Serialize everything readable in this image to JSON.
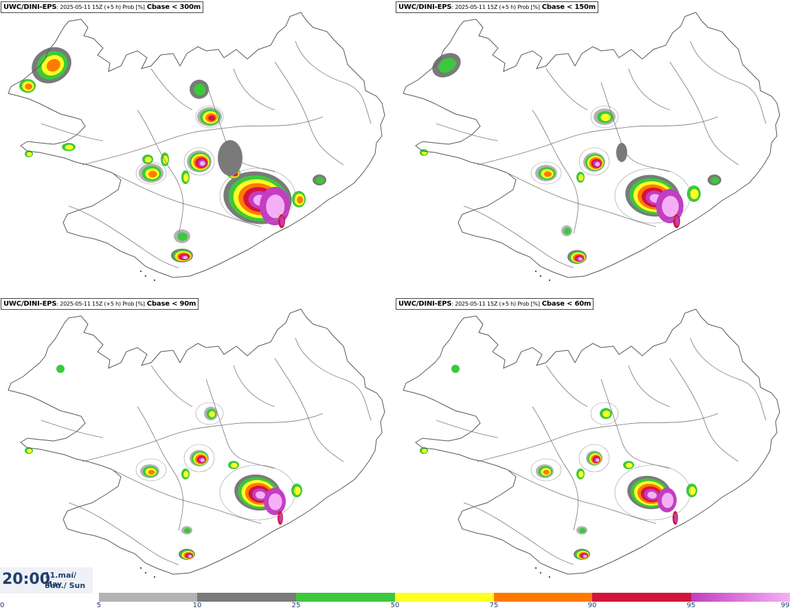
{
  "panels": [
    {
      "model": "UWC/DINI-EPS",
      "info": ": 2025-05-11 15Z (+5 h) Prob [%]",
      "field": "Cbase < 300m",
      "level": 3
    },
    {
      "model": "UWC/DINI-EPS",
      "info": ": 2025-05-11 15Z (+5 h) Prob [%]",
      "field": "Cbase < 150m",
      "level": 2
    },
    {
      "model": "UWC/DINI-EPS",
      "info": ": 2025-05-11 15Z (+5 h) Prob [%]",
      "field": "Cbase < 90m",
      "level": 1
    },
    {
      "model": "UWC/DINI-EPS",
      "info": ": 2025-05-11 15Z (+5 h) Prob [%]",
      "field": "Cbase < 60m",
      "level": 0
    }
  ],
  "time": {
    "clock": "20:00",
    "date_line1": "11.maí/ May",
    "date_line2": "Sun./ Sun"
  },
  "colorbar": {
    "ticks": [
      "0",
      "5",
      "10",
      "25",
      "50",
      "75",
      "90",
      "95",
      "99"
    ],
    "segments": [
      {
        "from": "5",
        "to": "10",
        "color": "#b3b3b3"
      },
      {
        "from": "10",
        "to": "25",
        "color": "#7a7a7a"
      },
      {
        "from": "25",
        "to": "50",
        "color": "#3cc83c"
      },
      {
        "from": "50",
        "to": "75",
        "color": "#ffff22"
      },
      {
        "from": "75",
        "to": "90",
        "color": "#ff7a00"
      },
      {
        "from": "90",
        "to": "95",
        "color": "#d4143c"
      },
      {
        "from": "95",
        "to": "99",
        "color": "#c23ec2",
        "color2": "#f5b0f5"
      }
    ]
  }
}
